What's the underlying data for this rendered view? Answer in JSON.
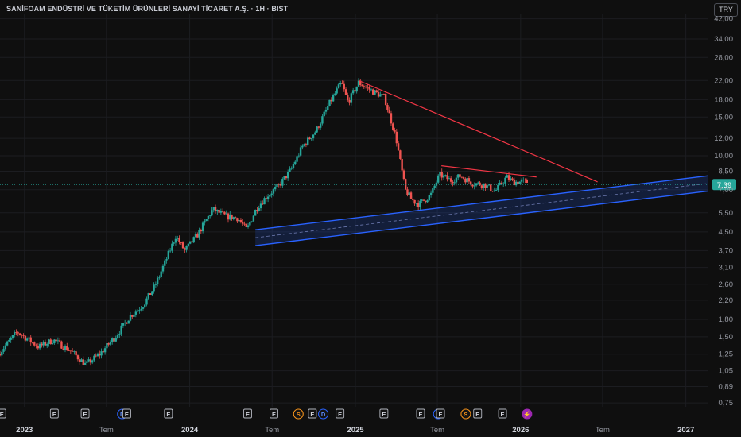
{
  "header": {
    "title": "SANİFOAM ENDÜSTRİ VE TÜKETİM ÜRÜNLERİ SANAYİ TİCARET A.Ş. · 1H · BIST",
    "currency_button": "TRY"
  },
  "colors": {
    "background": "#0f0f0f",
    "up": "#26a69a",
    "down": "#ef5350",
    "trendline": "#f23645",
    "channel": "#2962ff",
    "price_tag": "#26a69a"
  },
  "chart_data": {
    "type": "candlestick",
    "y_scale": "log",
    "ylim": [
      0.72,
      44
    ],
    "y_ticks": [
      0.75,
      0.89,
      1.05,
      1.25,
      1.5,
      1.8,
      2.2,
      2.6,
      3.1,
      3.7,
      4.5,
      5.5,
      7.0,
      8.5,
      10.0,
      12.0,
      15.0,
      18.0,
      22.0,
      28.0,
      34.0,
      42.0
    ],
    "y_tick_labels": [
      "0,75",
      "0,89",
      "1,05",
      "1,25",
      "1,50",
      "1,80",
      "2,20",
      "2,60",
      "3,10",
      "3,70",
      "4,50",
      "5,50",
      "7,00",
      "8,50",
      "10,00",
      "12,00",
      "15,00",
      "18,00",
      "22,00",
      "28,00",
      "34,00",
      "42,00"
    ],
    "xlim": [
      "2022-11-08",
      "2027-02-18"
    ],
    "x_ticks": [
      {
        "date": "2023-01-01",
        "label": "2023",
        "bold": true
      },
      {
        "date": "2023-07-01",
        "label": "Tem",
        "bold": false
      },
      {
        "date": "2024-01-01",
        "label": "2024",
        "bold": true
      },
      {
        "date": "2024-07-01",
        "label": "Tem",
        "bold": false
      },
      {
        "date": "2025-01-01",
        "label": "2025",
        "bold": true
      },
      {
        "date": "2025-07-01",
        "label": "Tem",
        "bold": false
      },
      {
        "date": "2026-01-01",
        "label": "2026",
        "bold": true
      },
      {
        "date": "2026-07-01",
        "label": "Tem",
        "bold": false
      },
      {
        "date": "2027-01-01",
        "label": "2027",
        "bold": true
      }
    ],
    "last_price": 7.39,
    "last_price_label": "7,39",
    "anchors": [
      [
        "2022-11-08",
        1.25
      ],
      [
        "2022-12-20",
        1.58
      ],
      [
        "2023-02-05",
        1.35
      ],
      [
        "2023-03-10",
        1.45
      ],
      [
        "2023-04-20",
        1.28
      ],
      [
        "2023-05-20",
        1.12
      ],
      [
        "2023-06-20",
        1.25
      ],
      [
        "2023-07-25",
        1.5
      ],
      [
        "2023-08-25",
        1.85
      ],
      [
        "2023-09-25",
        2.1
      ],
      [
        "2023-10-20",
        2.55
      ],
      [
        "2023-11-15",
        3.4
      ],
      [
        "2023-12-05",
        4.3
      ],
      [
        "2023-12-25",
        3.7
      ],
      [
        "2024-01-20",
        4.3
      ],
      [
        "2024-02-25",
        5.7
      ],
      [
        "2024-03-25",
        5.3
      ],
      [
        "2024-04-20",
        5.2
      ],
      [
        "2024-05-10",
        4.6
      ],
      [
        "2024-06-01",
        5.8
      ],
      [
        "2024-06-25",
        6.6
      ],
      [
        "2024-07-20",
        7.3
      ],
      [
        "2024-08-15",
        8.6
      ],
      [
        "2024-09-10",
        11.0
      ],
      [
        "2024-10-10",
        13.0
      ],
      [
        "2024-11-10",
        17.5
      ],
      [
        "2024-12-05",
        21.5
      ],
      [
        "2024-12-20",
        17.5
      ],
      [
        "2025-01-12",
        21.5
      ],
      [
        "2025-02-15",
        19.5
      ],
      [
        "2025-03-10",
        18.5
      ],
      [
        "2025-04-05",
        12.0
      ],
      [
        "2025-04-25",
        7.0
      ],
      [
        "2025-05-10",
        6.3
      ],
      [
        "2025-05-25",
        6.0
      ],
      [
        "2025-06-20",
        6.6
      ],
      [
        "2025-07-10",
        8.2
      ],
      [
        "2025-08-05",
        7.7
      ],
      [
        "2025-08-25",
        8.1
      ],
      [
        "2025-09-20",
        7.5
      ],
      [
        "2025-10-15",
        7.4
      ],
      [
        "2025-11-10",
        6.9
      ],
      [
        "2025-12-05",
        8.0
      ],
      [
        "2025-12-20",
        7.6
      ],
      [
        "2026-01-15",
        7.6
      ]
    ],
    "trendlines": [
      {
        "name": "Upper",
        "from": [
          "2025-01-08",
          22.0
        ],
        "to": [
          "2026-06-20",
          7.6
        ]
      },
      {
        "name": "Lower",
        "from": [
          "2025-07-10",
          9.0
        ],
        "to": [
          "2026-02-05",
          8.0
        ]
      }
    ],
    "channel": {
      "from_date": "2024-05-25",
      "to_date": "2027-02-18",
      "upper": [
        4.6,
        8.1
      ],
      "lower": [
        3.9,
        6.9
      ]
    },
    "event_markers": [
      {
        "date": "2022-11-12",
        "letter": "E",
        "style": "box"
      },
      {
        "date": "2023-03-08",
        "letter": "E",
        "style": "box"
      },
      {
        "date": "2023-05-15",
        "letter": "E",
        "style": "box"
      },
      {
        "date": "2023-08-05",
        "letter": "D",
        "style": "circle-blue"
      },
      {
        "date": "2023-08-15",
        "letter": "E",
        "style": "box"
      },
      {
        "date": "2023-11-15",
        "letter": "E",
        "style": "box"
      },
      {
        "date": "2024-05-08",
        "letter": "E",
        "style": "box"
      },
      {
        "date": "2024-07-05",
        "letter": "E",
        "style": "box"
      },
      {
        "date": "2024-08-28",
        "letter": "S",
        "style": "circle-orange"
      },
      {
        "date": "2024-09-28",
        "letter": "E",
        "style": "box"
      },
      {
        "date": "2024-10-22",
        "letter": "D",
        "style": "circle-blue"
      },
      {
        "date": "2024-11-28",
        "letter": "E",
        "style": "box"
      },
      {
        "date": "2025-03-05",
        "letter": "E",
        "style": "box"
      },
      {
        "date": "2025-05-25",
        "letter": "E",
        "style": "box"
      },
      {
        "date": "2025-07-03",
        "letter": "D",
        "style": "circle-blue"
      },
      {
        "date": "2025-07-08",
        "letter": "E",
        "style": "box"
      },
      {
        "date": "2025-09-02",
        "letter": "S",
        "style": "circle-orange"
      },
      {
        "date": "2025-09-28",
        "letter": "E",
        "style": "box"
      },
      {
        "date": "2025-11-22",
        "letter": "E",
        "style": "box"
      },
      {
        "date": "2026-01-15",
        "letter": "⚡",
        "style": "circle-purple"
      }
    ]
  }
}
